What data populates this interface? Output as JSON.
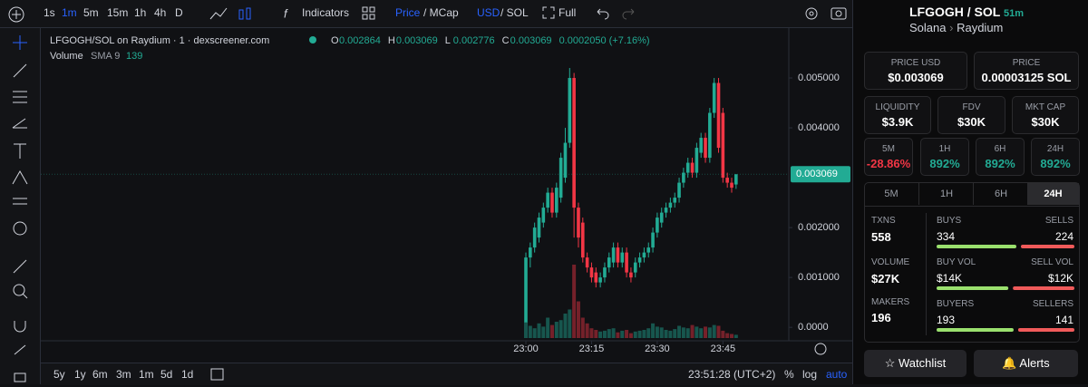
{
  "toolbar": {
    "intervals": [
      "1s",
      "1m",
      "5m",
      "15m",
      "1h",
      "4h",
      "D"
    ],
    "indicators": "Indicators",
    "price": "Price",
    "mcap": "/ MCap",
    "usd": "USD",
    "sol": "/ SOL",
    "full": "Full"
  },
  "legend": {
    "title": "LFGOGH/SOL on Raydium · 1 · dexscreener.com",
    "ohlc": [
      {
        "key": "O",
        "value": "0.002864"
      },
      {
        "key": "H",
        "value": "0.003069"
      },
      {
        "key": "L",
        "value": "0.002776"
      },
      {
        "key": "C",
        "value": "0.003069"
      }
    ],
    "change": "0.0002050 (+7.16%)",
    "volume": "Volume",
    "sma": "SMA 9",
    "sma_value": "139"
  },
  "chart_data": {
    "type": "candlestick",
    "x": [
      "23:00",
      "23:01",
      "23:02",
      "23:03",
      "23:04",
      "23:05",
      "23:06",
      "23:07",
      "23:08",
      "23:09",
      "23:10",
      "23:11",
      "23:12",
      "23:13",
      "23:14",
      "23:15",
      "23:16",
      "23:17",
      "23:18",
      "23:19",
      "23:20",
      "23:21",
      "23:22",
      "23:23",
      "23:24",
      "23:25",
      "23:26",
      "23:27",
      "23:28",
      "23:29",
      "23:30",
      "23:31",
      "23:32",
      "23:33",
      "23:34",
      "23:35",
      "23:36",
      "23:37",
      "23:38",
      "23:39",
      "23:40",
      "23:41",
      "23:42",
      "23:43",
      "23:44",
      "23:45",
      "23:46",
      "23:47",
      "23:48"
    ],
    "open": [
      0.0001,
      0.0014,
      0.0016,
      0.0018,
      0.0021,
      0.0024,
      0.0027,
      0.0023,
      0.0026,
      0.003,
      0.0037,
      0.005,
      0.0024,
      0.0021,
      0.0014,
      0.0012,
      0.0011,
      0.0009,
      0.001,
      0.0012,
      0.0013,
      0.0016,
      0.0013,
      0.0015,
      0.0011,
      0.0011,
      0.0013,
      0.0014,
      0.0015,
      0.0016,
      0.0019,
      0.0021,
      0.0023,
      0.0024,
      0.0025,
      0.0026,
      0.0029,
      0.0031,
      0.0033,
      0.0031,
      0.0035,
      0.0038,
      0.0034,
      0.0043,
      0.0049,
      0.0043,
      0.003,
      0.0029,
      0.002864
    ],
    "high": [
      0.0015,
      0.0017,
      0.0021,
      0.0023,
      0.0025,
      0.0028,
      0.0028,
      0.0029,
      0.0035,
      0.004,
      0.0052,
      0.0051,
      0.0025,
      0.0022,
      0.0015,
      0.0013,
      0.0012,
      0.0011,
      0.0013,
      0.0015,
      0.0017,
      0.0017,
      0.0016,
      0.0016,
      0.0012,
      0.0014,
      0.0015,
      0.0016,
      0.0017,
      0.002,
      0.0023,
      0.0024,
      0.0025,
      0.0026,
      0.0027,
      0.003,
      0.0032,
      0.0034,
      0.0034,
      0.0037,
      0.0039,
      0.0039,
      0.0044,
      0.005,
      0.005,
      0.0044,
      0.0031,
      0.003,
      0.003069
    ],
    "low": [
      0.0001,
      0.0012,
      0.0015,
      0.0017,
      0.002,
      0.0023,
      0.0022,
      0.0022,
      0.0025,
      0.0029,
      0.0036,
      0.0018,
      0.0016,
      0.0013,
      0.0011,
      0.0009,
      0.0008,
      0.0008,
      0.0009,
      0.0011,
      0.0012,
      0.0012,
      0.0012,
      0.001,
      0.0009,
      0.001,
      0.0012,
      0.0013,
      0.0014,
      0.0015,
      0.0018,
      0.002,
      0.0022,
      0.0023,
      0.0024,
      0.0025,
      0.0028,
      0.003,
      0.003,
      0.003,
      0.0034,
      0.0033,
      0.0033,
      0.0042,
      0.0035,
      0.0029,
      0.0028,
      0.0027,
      0.002776
    ],
    "close": [
      0.0014,
      0.0016,
      0.002,
      0.0022,
      0.0024,
      0.0027,
      0.0023,
      0.0028,
      0.0034,
      0.0037,
      0.005,
      0.0024,
      0.0018,
      0.0014,
      0.0012,
      0.001,
      0.0009,
      0.001,
      0.0012,
      0.0014,
      0.0016,
      0.0013,
      0.0015,
      0.0011,
      0.001,
      0.0013,
      0.0014,
      0.0015,
      0.0016,
      0.0019,
      0.0022,
      0.0023,
      0.0024,
      0.0025,
      0.0026,
      0.0029,
      0.0031,
      0.0033,
      0.0031,
      0.0036,
      0.0038,
      0.0034,
      0.0043,
      0.0049,
      0.0036,
      0.003,
      0.0029,
      0.0028,
      0.003069
    ],
    "volume": [
      200,
      150,
      120,
      180,
      140,
      250,
      160,
      200,
      220,
      300,
      350,
      900,
      450,
      250,
      180,
      120,
      100,
      80,
      90,
      110,
      120,
      70,
      90,
      100,
      60,
      80,
      90,
      100,
      120,
      180,
      140,
      130,
      100,
      90,
      110,
      150,
      130,
      120,
      160,
      140,
      120,
      140,
      130,
      160,
      150,
      90,
      60,
      50,
      40
    ],
    "volume_lim": [
      0,
      1000
    ],
    "ylim": [
      -0.00027,
      0.006
    ],
    "yticks": [
      {
        "value": 0.005,
        "label": "0.005000"
      },
      {
        "value": 0.004,
        "label": "0.004000"
      },
      {
        "value": 0.002,
        "label": "0.002000"
      },
      {
        "value": 0.001,
        "label": "0.001000"
      },
      {
        "value": 0,
        "label": "0.0000"
      }
    ],
    "xticks": [
      "23:00",
      "23:15",
      "23:30",
      "23:45"
    ],
    "last_price": 0.003069,
    "up_color": "#22ab94",
    "down_color": "#f23645"
  },
  "bottom": {
    "ranges": [
      "5y",
      "1y",
      "6m",
      "3m",
      "1m",
      "5d",
      "1d"
    ],
    "clock": "23:51:28 (UTC+2)",
    "percent": "%",
    "log": "log",
    "auto": "auto"
  },
  "pair": {
    "base": "LFGOGH",
    "quote": "/ SOL",
    "age": "51m",
    "chain": "Solana",
    "dex": "Raydium"
  },
  "stats": [
    {
      "label": "PRICE USD",
      "value": "$0.003069"
    },
    {
      "label": "PRICE",
      "value": "0.00003125 SOL"
    },
    {
      "label": "LIQUIDITY",
      "value": "$3.9K"
    },
    {
      "label": "FDV",
      "value": "$30K"
    },
    {
      "label": "MKT CAP",
      "value": "$30K"
    }
  ],
  "changes": [
    {
      "label": "5M",
      "value": "-28.86%"
    },
    {
      "label": "1H",
      "value": "892%"
    },
    {
      "label": "6H",
      "value": "892%"
    },
    {
      "label": "24H",
      "value": "892%"
    }
  ],
  "tabs": [
    "5M",
    "1H",
    "6H",
    "24H"
  ],
  "txns": {
    "label": "TXNS",
    "value": 558,
    "buys_label": "BUYS",
    "buys": 334,
    "sells_label": "SELLS",
    "sells": 224
  },
  "volume": {
    "label": "VOLUME",
    "value": "$27K",
    "buy_label": "BUY VOL",
    "buy": {
      "value": 14000,
      "label": "$14K"
    },
    "sell_label": "SELL VOL",
    "sell": {
      "value": 12000,
      "label": "$12K"
    }
  },
  "makers": {
    "label": "MAKERS",
    "value": 196,
    "buyers_label": "BUYERS",
    "buyers": 193,
    "sellers_label": "SELLERS",
    "sellers": 141
  },
  "buttons": {
    "watchlist": "Watchlist",
    "alerts": "Alerts"
  }
}
